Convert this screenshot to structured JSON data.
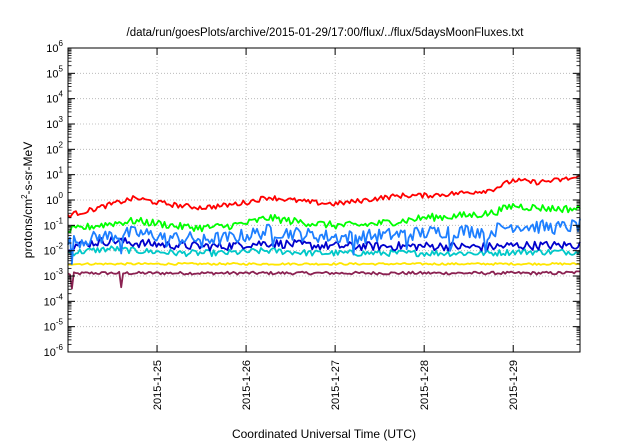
{
  "chart_data": {
    "type": "line",
    "title": "/data/run/goesPlots/archive/2015-01-29/17:00/flux/../flux/5daysMoonFluxes.txt",
    "xlabel": "Coordinated Universal Time (UTC)",
    "ylabel": {
      "prefix": "protons/cm",
      "sup": "2",
      "suffix": "-s-sr-MeV"
    },
    "y_scale": "log",
    "ylim_exponents": [
      -6,
      6
    ],
    "y_tick_exponents": [
      -6,
      -5,
      -4,
      -3,
      -2,
      -1,
      0,
      1,
      2,
      3,
      4,
      5,
      6
    ],
    "y_tick_base": "10",
    "xlim_days": [
      24.0,
      29.75
    ],
    "x_ticks": [
      {
        "label": "2015-1-25",
        "day": 25
      },
      {
        "label": "2015-1-26",
        "day": 26
      },
      {
        "label": "2015-1-27",
        "day": 27
      },
      {
        "label": "2015-1-28",
        "day": 28
      },
      {
        "label": "2015-1-29",
        "day": 29
      }
    ],
    "grid": true,
    "legend": "none",
    "series": [
      {
        "color": "#ff0000",
        "days": [
          24.0,
          24.25,
          24.5,
          24.75,
          25.0,
          25.25,
          25.5,
          25.75,
          26.0,
          26.25,
          26.5,
          26.75,
          27.0,
          27.25,
          27.5,
          27.75,
          28.0,
          28.25,
          28.5,
          28.75,
          29.0,
          29.25,
          29.5,
          29.75
        ],
        "values": [
          0.25,
          0.4,
          0.7,
          1.2,
          0.8,
          0.6,
          0.5,
          0.6,
          0.8,
          1.3,
          1.0,
          0.8,
          0.7,
          0.9,
          1.2,
          1.5,
          1.5,
          1.7,
          2.0,
          2.5,
          6.0,
          5.0,
          6.0,
          8.0
        ],
        "noise": 0.2
      },
      {
        "color": "#00ff00",
        "days": [
          24.0,
          24.25,
          24.5,
          24.75,
          25.0,
          25.25,
          25.5,
          25.75,
          26.0,
          26.25,
          26.5,
          26.75,
          27.0,
          27.25,
          27.5,
          27.75,
          28.0,
          28.25,
          28.5,
          28.75,
          29.0,
          29.25,
          29.5,
          29.75
        ],
        "values": [
          0.06,
          0.09,
          0.12,
          0.15,
          0.12,
          0.09,
          0.08,
          0.09,
          0.12,
          0.2,
          0.15,
          0.12,
          0.1,
          0.1,
          0.12,
          0.15,
          0.2,
          0.22,
          0.25,
          0.3,
          0.6,
          0.5,
          0.45,
          0.45
        ],
        "noise": 0.3
      },
      {
        "color": "#1e7fff",
        "days": [
          24.0,
          24.25,
          24.5,
          24.75,
          25.0,
          25.25,
          25.5,
          25.75,
          26.0,
          26.25,
          26.5,
          26.75,
          27.0,
          27.25,
          27.5,
          27.75,
          28.0,
          28.25,
          28.5,
          28.75,
          29.0,
          29.25,
          29.5,
          29.75
        ],
        "values": [
          0.02,
          0.03,
          0.04,
          0.05,
          0.04,
          0.03,
          0.03,
          0.03,
          0.04,
          0.06,
          0.05,
          0.04,
          0.035,
          0.035,
          0.04,
          0.045,
          0.05,
          0.06,
          0.06,
          0.06,
          0.1,
          0.09,
          0.08,
          0.1
        ],
        "noise": 0.55,
        "dips": [
          24.05,
          24.6,
          25.1,
          25.5,
          26.3,
          27.2,
          27.8,
          28.3,
          28.7
        ]
      },
      {
        "color": "#0000cc",
        "days": [
          24.0,
          24.25,
          24.5,
          24.75,
          25.0,
          25.25,
          25.5,
          25.75,
          26.0,
          26.25,
          26.5,
          26.75,
          27.0,
          27.25,
          27.5,
          27.75,
          28.0,
          28.25,
          28.5,
          28.75,
          29.0,
          29.25,
          29.5,
          29.75
        ],
        "values": [
          0.015,
          0.02,
          0.025,
          0.02,
          0.018,
          0.016,
          0.015,
          0.015,
          0.018,
          0.02,
          0.018,
          0.016,
          0.015,
          0.015,
          0.015,
          0.015,
          0.015,
          0.015,
          0.014,
          0.014,
          0.016,
          0.016,
          0.016,
          0.017
        ],
        "noise": 0.35
      },
      {
        "color": "#00c8c8",
        "days": [
          24.0,
          24.25,
          24.5,
          24.75,
          25.0,
          25.25,
          25.5,
          25.75,
          26.0,
          26.25,
          26.5,
          26.75,
          27.0,
          27.25,
          27.5,
          27.75,
          28.0,
          28.25,
          28.5,
          28.75,
          29.0,
          29.25,
          29.5,
          29.75
        ],
        "values": [
          0.008,
          0.01,
          0.012,
          0.01,
          0.009,
          0.008,
          0.008,
          0.008,
          0.009,
          0.01,
          0.009,
          0.008,
          0.008,
          0.008,
          0.008,
          0.008,
          0.008,
          0.008,
          0.008,
          0.008,
          0.009,
          0.009,
          0.009,
          0.009
        ],
        "noise": 0.25
      },
      {
        "color": "#ffe600",
        "days": [
          24.0,
          24.25,
          24.5,
          24.75,
          25.0,
          25.25,
          25.5,
          25.75,
          26.0,
          26.25,
          26.5,
          26.75,
          27.0,
          27.25,
          27.5,
          27.75,
          28.0,
          28.25,
          28.5,
          28.75,
          29.0,
          29.25,
          29.5,
          29.75
        ],
        "values": [
          0.003,
          0.003,
          0.003,
          0.003,
          0.003,
          0.003,
          0.003,
          0.003,
          0.003,
          0.003,
          0.003,
          0.003,
          0.003,
          0.003,
          0.003,
          0.003,
          0.003,
          0.003,
          0.003,
          0.003,
          0.003,
          0.003,
          0.003,
          0.003
        ],
        "noise": 0.08
      },
      {
        "color": "#8b2252",
        "days": [
          24.0,
          24.25,
          24.5,
          24.75,
          25.0,
          25.25,
          25.5,
          25.75,
          26.0,
          26.25,
          26.5,
          26.75,
          27.0,
          27.25,
          27.5,
          27.75,
          28.0,
          28.25,
          28.5,
          28.75,
          29.0,
          29.25,
          29.5,
          29.75
        ],
        "values": [
          0.0012,
          0.0013,
          0.0013,
          0.0013,
          0.0013,
          0.0013,
          0.0013,
          0.0013,
          0.0013,
          0.0013,
          0.0013,
          0.0013,
          0.0013,
          0.0013,
          0.0013,
          0.0013,
          0.0013,
          0.0013,
          0.0013,
          0.0013,
          0.0013,
          0.0013,
          0.0013,
          0.0014
        ],
        "noise": 0.12,
        "dips": [
          24.05,
          24.6
        ]
      }
    ]
  }
}
